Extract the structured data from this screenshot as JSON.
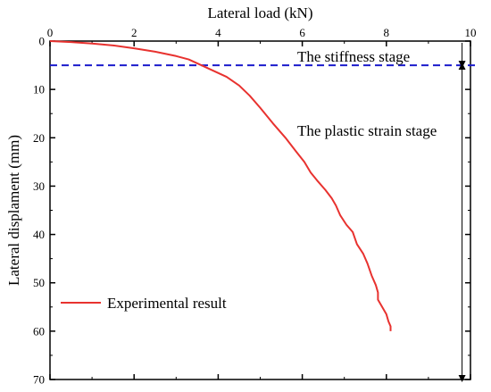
{
  "chart_data": {
    "type": "line",
    "xlabel": "Lateral load (kN)",
    "ylabel": "Lateral displament (mm)",
    "xlim": [
      0,
      10
    ],
    "ylim": [
      0,
      70
    ],
    "x_ticks": [
      "0",
      "2",
      "4",
      "6",
      "8",
      "10"
    ],
    "y_ticks": [
      "0",
      "10",
      "20",
      "30",
      "40",
      "50",
      "60",
      "70"
    ],
    "y_inverted": true,
    "x_axis_position": "top",
    "grid": false,
    "legend_position": "bottom-left",
    "series": [
      {
        "name": "Experimental result",
        "color": "#e8322f",
        "points": [
          [
            0.0,
            0.0
          ],
          [
            0.5,
            0.2
          ],
          [
            1.0,
            0.5
          ],
          [
            1.5,
            0.9
          ],
          [
            2.0,
            1.5
          ],
          [
            2.5,
            2.2
          ],
          [
            3.0,
            3.1
          ],
          [
            3.3,
            3.8
          ],
          [
            3.6,
            5.0
          ],
          [
            3.9,
            6.2
          ],
          [
            4.2,
            7.4
          ],
          [
            4.5,
            9.2
          ],
          [
            4.75,
            11.3
          ],
          [
            5.0,
            13.8
          ],
          [
            5.3,
            17.0
          ],
          [
            5.6,
            20.0
          ],
          [
            5.85,
            22.8
          ],
          [
            6.05,
            25.0
          ],
          [
            6.2,
            27.2
          ],
          [
            6.35,
            28.8
          ],
          [
            6.55,
            30.8
          ],
          [
            6.7,
            32.5
          ],
          [
            6.8,
            34.0
          ],
          [
            6.9,
            36.0
          ],
          [
            7.05,
            38.0
          ],
          [
            7.2,
            39.5
          ],
          [
            7.3,
            42.0
          ],
          [
            7.45,
            44.0
          ],
          [
            7.55,
            46.0
          ],
          [
            7.65,
            48.5
          ],
          [
            7.75,
            50.5
          ],
          [
            7.8,
            52.0
          ],
          [
            7.8,
            53.5
          ],
          [
            7.9,
            55.0
          ],
          [
            8.0,
            56.5
          ],
          [
            8.05,
            58.0
          ],
          [
            8.1,
            59.0
          ],
          [
            8.1,
            60.0
          ]
        ]
      }
    ],
    "divider_y": 5,
    "divider_color": "#1b1bcc",
    "annotations": {
      "stiffness": "The stiffness stage",
      "plastic": "The plastic strain stage"
    }
  }
}
